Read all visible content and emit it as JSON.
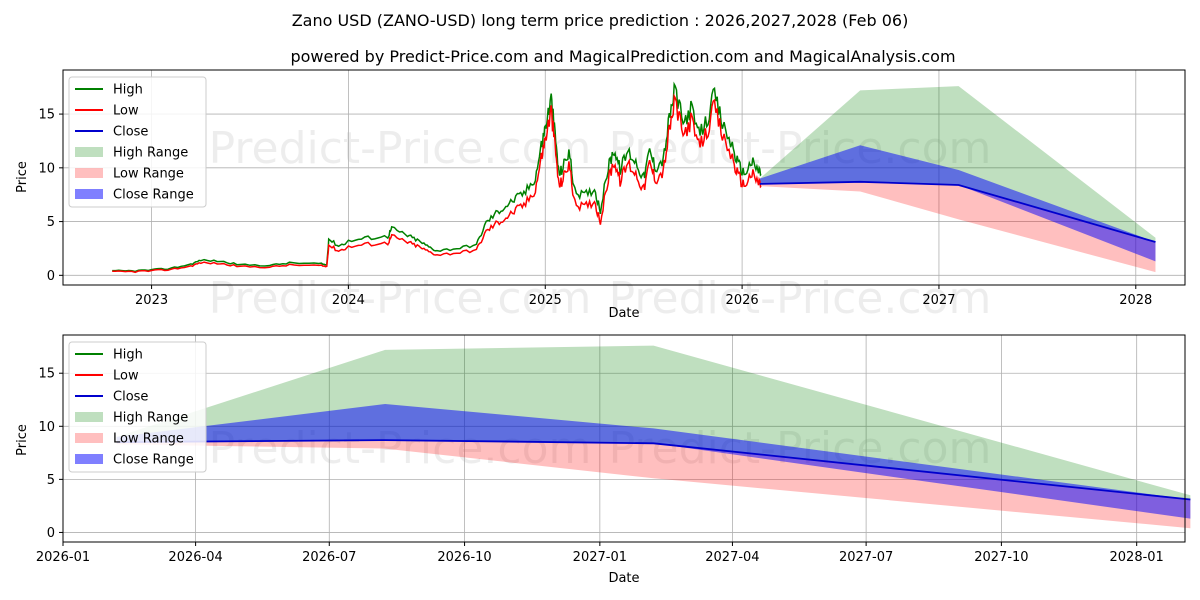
{
  "title": "Zano USD (ZANO-USD) long term price prediction : 2026,2027,2028 (Feb 06)",
  "subtitle": "powered by Predict-Price.com and MagicalPrediction.com and MagicalAnalysis.com",
  "watermark": "Predict-Price.com",
  "colors": {
    "high": "#008000",
    "low": "#ff0000",
    "close": "#0000cd",
    "high_range": "#008000",
    "low_range": "#ff0000",
    "close_range": "#0000ff"
  },
  "legend": [
    "High",
    "Low",
    "Close",
    "High Range",
    "Low Range",
    "Close Range"
  ],
  "chart_data": [
    {
      "type": "line",
      "name": "full-history",
      "xlabel": "Date",
      "ylabel": "Price",
      "xlim": [
        2022.55,
        2028.25
      ],
      "ylim": [
        -0.9,
        19.1
      ],
      "xticks": [
        2023,
        2024,
        2025,
        2026,
        2027,
        2028
      ],
      "xtick_labels": [
        "2023",
        "2024",
        "2025",
        "2026",
        "2027",
        "2028"
      ],
      "yticks": [
        0,
        5,
        10,
        15
      ],
      "ytick_labels": [
        "0",
        "5",
        "10",
        "15"
      ],
      "history_close": [
        [
          2022.8,
          0.35
        ],
        [
          2022.9,
          0.38
        ],
        [
          2023.0,
          0.45
        ],
        [
          2023.1,
          0.6
        ],
        [
          2023.2,
          0.95
        ],
        [
          2023.25,
          1.3
        ],
        [
          2023.35,
          1.2
        ],
        [
          2023.45,
          0.9
        ],
        [
          2023.6,
          0.85
        ],
        [
          2023.7,
          1.05
        ],
        [
          2023.85,
          1.0
        ],
        [
          2023.89,
          0.9
        ],
        [
          2023.9,
          3.1
        ],
        [
          2023.95,
          2.5
        ],
        [
          2024.0,
          2.9
        ],
        [
          2024.1,
          3.2
        ],
        [
          2024.2,
          3.3
        ],
        [
          2024.22,
          4.0
        ],
        [
          2024.3,
          3.4
        ],
        [
          2024.35,
          3.0
        ],
        [
          2024.4,
          2.5
        ],
        [
          2024.45,
          2.1
        ],
        [
          2024.55,
          2.3
        ],
        [
          2024.65,
          2.6
        ],
        [
          2024.7,
          4.5
        ],
        [
          2024.75,
          5.3
        ],
        [
          2024.8,
          5.9
        ],
        [
          2024.85,
          6.6
        ],
        [
          2024.9,
          7.2
        ],
        [
          2024.95,
          8.6
        ],
        [
          2024.98,
          11.5
        ],
        [
          2025.0,
          13.2
        ],
        [
          2025.03,
          15.8
        ],
        [
          2025.05,
          12.5
        ],
        [
          2025.07,
          8.8
        ],
        [
          2025.09,
          9.5
        ],
        [
          2025.12,
          11.0
        ],
        [
          2025.15,
          7.2
        ],
        [
          2025.2,
          6.9
        ],
        [
          2025.25,
          7.5
        ],
        [
          2025.28,
          5.5
        ],
        [
          2025.32,
          9.5
        ],
        [
          2025.35,
          11.2
        ],
        [
          2025.38,
          9.3
        ],
        [
          2025.42,
          11.0
        ],
        [
          2025.46,
          10.0
        ],
        [
          2025.5,
          8.5
        ],
        [
          2025.53,
          11.0
        ],
        [
          2025.56,
          9.5
        ],
        [
          2025.6,
          10.2
        ],
        [
          2025.63,
          14.0
        ],
        [
          2025.66,
          16.8
        ],
        [
          2025.7,
          13.5
        ],
        [
          2025.74,
          15.0
        ],
        [
          2025.78,
          12.5
        ],
        [
          2025.82,
          13.8
        ],
        [
          2025.86,
          16.2
        ],
        [
          2025.9,
          13.5
        ],
        [
          2025.95,
          11.5
        ],
        [
          2025.98,
          9.8
        ],
        [
          2026.01,
          8.9
        ],
        [
          2026.05,
          10.0
        ],
        [
          2026.08,
          9.2
        ],
        [
          2026.1,
          9.0
        ]
      ],
      "high_offset": 0.55,
      "low_offset": -0.55,
      "forecast_close": [
        [
          2026.09,
          8.5
        ],
        [
          2026.6,
          8.7
        ],
        [
          2027.1,
          8.4
        ],
        [
          2028.1,
          3.1
        ]
      ],
      "high_range_upper": [
        [
          2026.09,
          9.0
        ],
        [
          2026.6,
          17.2
        ],
        [
          2027.1,
          17.6
        ],
        [
          2028.1,
          3.5
        ]
      ],
      "high_range_lower": [
        [
          2026.09,
          8.5
        ],
        [
          2026.6,
          8.7
        ],
        [
          2027.1,
          8.4
        ],
        [
          2028.1,
          3.1
        ]
      ],
      "low_range_upper": [
        [
          2026.09,
          8.5
        ],
        [
          2026.6,
          8.7
        ],
        [
          2027.1,
          8.4
        ],
        [
          2028.1,
          3.1
        ]
      ],
      "low_range_lower": [
        [
          2026.09,
          8.3
        ],
        [
          2026.6,
          7.8
        ],
        [
          2027.1,
          5.2
        ],
        [
          2028.1,
          0.3
        ]
      ],
      "close_range_upper": [
        [
          2026.09,
          9.0
        ],
        [
          2026.6,
          12.1
        ],
        [
          2027.1,
          9.8
        ],
        [
          2028.1,
          3.1
        ]
      ],
      "close_range_lower": [
        [
          2026.09,
          8.5
        ],
        [
          2026.6,
          8.7
        ],
        [
          2027.1,
          8.4
        ],
        [
          2028.1,
          1.3
        ]
      ]
    },
    {
      "type": "line",
      "name": "forecast-zoom",
      "xlabel": "Date",
      "ylabel": "Price",
      "xlim": [
        2026.0,
        2028.09
      ],
      "ylim": [
        -0.9,
        18.6
      ],
      "xticks": [
        2026.0,
        2026.247,
        2026.496,
        2026.748,
        2027.0,
        2027.247,
        2027.496,
        2027.748,
        2028.0
      ],
      "xtick_labels": [
        "2026-01",
        "2026-04",
        "2026-07",
        "2026-10",
        "2027-01",
        "2027-04",
        "2027-07",
        "2027-10",
        "2028-01"
      ],
      "yticks": [
        0,
        5,
        10,
        15
      ],
      "ytick_labels": [
        "0",
        "5",
        "10",
        "15"
      ],
      "forecast_close": [
        [
          2026.1,
          8.5
        ],
        [
          2026.6,
          8.7
        ],
        [
          2027.1,
          8.4
        ],
        [
          2028.1,
          3.1
        ]
      ],
      "high_range_upper": [
        [
          2026.1,
          9.0
        ],
        [
          2026.6,
          17.2
        ],
        [
          2027.1,
          17.6
        ],
        [
          2028.1,
          3.5
        ]
      ],
      "high_range_lower": [
        [
          2026.1,
          8.5
        ],
        [
          2026.6,
          8.7
        ],
        [
          2027.1,
          8.4
        ],
        [
          2028.1,
          3.1
        ]
      ],
      "low_range_upper": [
        [
          2026.1,
          8.5
        ],
        [
          2026.6,
          8.7
        ],
        [
          2027.1,
          8.4
        ],
        [
          2028.1,
          3.1
        ]
      ],
      "low_range_lower": [
        [
          2026.1,
          8.3
        ],
        [
          2026.6,
          7.9
        ],
        [
          2027.1,
          5.1
        ],
        [
          2028.1,
          0.4
        ]
      ],
      "close_range_upper": [
        [
          2026.1,
          9.0
        ],
        [
          2026.6,
          12.1
        ],
        [
          2027.1,
          9.8
        ],
        [
          2028.1,
          3.1
        ]
      ],
      "close_range_lower": [
        [
          2026.1,
          8.5
        ],
        [
          2026.6,
          8.7
        ],
        [
          2027.1,
          8.4
        ],
        [
          2028.1,
          1.3
        ]
      ]
    }
  ]
}
